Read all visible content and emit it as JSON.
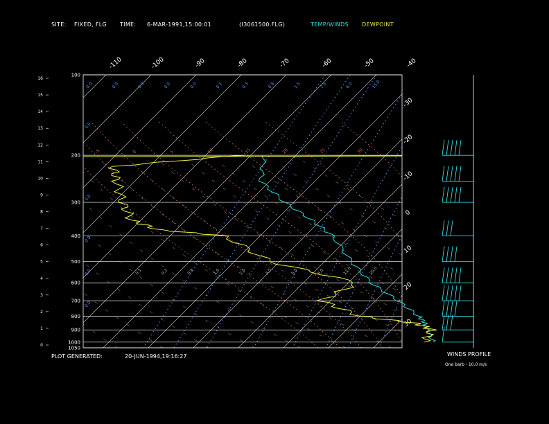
{
  "header": {
    "site_label": "SITE:",
    "site_value": "FIXED, FLG",
    "time_label": "TIME:",
    "time_value": "6-MAR-1991,15:00:01",
    "file_name": "(I3061500.FLG)",
    "legend_temp": "TEMP/WINDS",
    "legend_dew": "DEWPOINT"
  },
  "footer": {
    "generated_label": "PLOT GENERATED:",
    "generated_value": "20-JUN-1994,19:16:27",
    "winds_title": "WINDS PROFILE",
    "barb_note": "One barb - 10.0 m/s"
  },
  "colors": {
    "temp": "#33dddd",
    "dewpoint": "#eeee44",
    "isotherm": "#cccccc",
    "mixing_ratio": "#5599ff",
    "moist_adiabat": "#cc6644",
    "isobar": "#ffffff"
  },
  "chart_data": {
    "type": "line",
    "subtype": "skew-T log-P",
    "y_label_left": "km",
    "pressure_levels": [
      100,
      200,
      300,
      400,
      500,
      600,
      700,
      800,
      900,
      1000,
      1050
    ],
    "height_ticks_km": [
      16,
      15,
      14,
      13,
      12,
      11,
      10,
      9,
      8,
      7,
      6,
      5,
      4,
      3,
      2,
      1,
      0
    ],
    "isotherm_labels_top": [
      -110,
      -100,
      -90,
      -80,
      -70,
      -60,
      -50,
      -40
    ],
    "isotherm_labels_right": [
      -30,
      -20,
      -10,
      0,
      10,
      20,
      30
    ],
    "mixing_ratio_labels_top": [
      0.0,
      0.0,
      0.0,
      0.0,
      0.0,
      0.1,
      0.3,
      0.8,
      1.5,
      2.5,
      6.0,
      15.0
    ],
    "mixing_ratio_labels_lower": [
      0.1,
      0.2,
      0.4,
      1.0,
      2.0,
      3.5,
      5.0,
      8.0,
      12.0,
      20.0
    ],
    "mixing_ratio_labels_left": [
      0.0,
      0.0,
      0.0,
      0.0,
      0.0
    ],
    "moist_adiabat_labels": [
      -5,
      0,
      5,
      10,
      15,
      20,
      25,
      30
    ],
    "series": [
      {
        "name": "TEMP/WINDS",
        "pressure": [
          1000,
          900,
          850,
          800,
          700,
          600,
          500,
          400,
          350,
          300,
          250,
          200
        ],
        "temperature": [
          22,
          18,
          16,
          13,
          5,
          -5,
          -14,
          -24,
          -32,
          -42,
          -52,
          -57
        ]
      },
      {
        "name": "DEWPOINT",
        "pressure": [
          1000,
          900,
          850,
          800,
          700,
          600,
          500,
          400,
          380,
          350,
          300,
          250,
          220,
          200
        ],
        "dewpoint": [
          20,
          19,
          14,
          0,
          -12,
          -8,
          -32,
          -48,
          -64,
          -72,
          -78,
          -84,
          -88,
          -62
        ]
      }
    ],
    "winds": [
      {
        "pressure": 1000,
        "speed_ms": 5
      },
      {
        "pressure": 900,
        "speed_ms": 25
      },
      {
        "pressure": 800,
        "speed_ms": 40
      },
      {
        "pressure": 700,
        "speed_ms": 50
      },
      {
        "pressure": 600,
        "speed_ms": 50
      },
      {
        "pressure": 500,
        "speed_ms": 40
      },
      {
        "pressure": 400,
        "speed_ms": 30
      },
      {
        "pressure": 300,
        "speed_ms": 50
      },
      {
        "pressure": 250,
        "speed_ms": 50
      },
      {
        "pressure": 200,
        "speed_ms": 50
      }
    ]
  }
}
